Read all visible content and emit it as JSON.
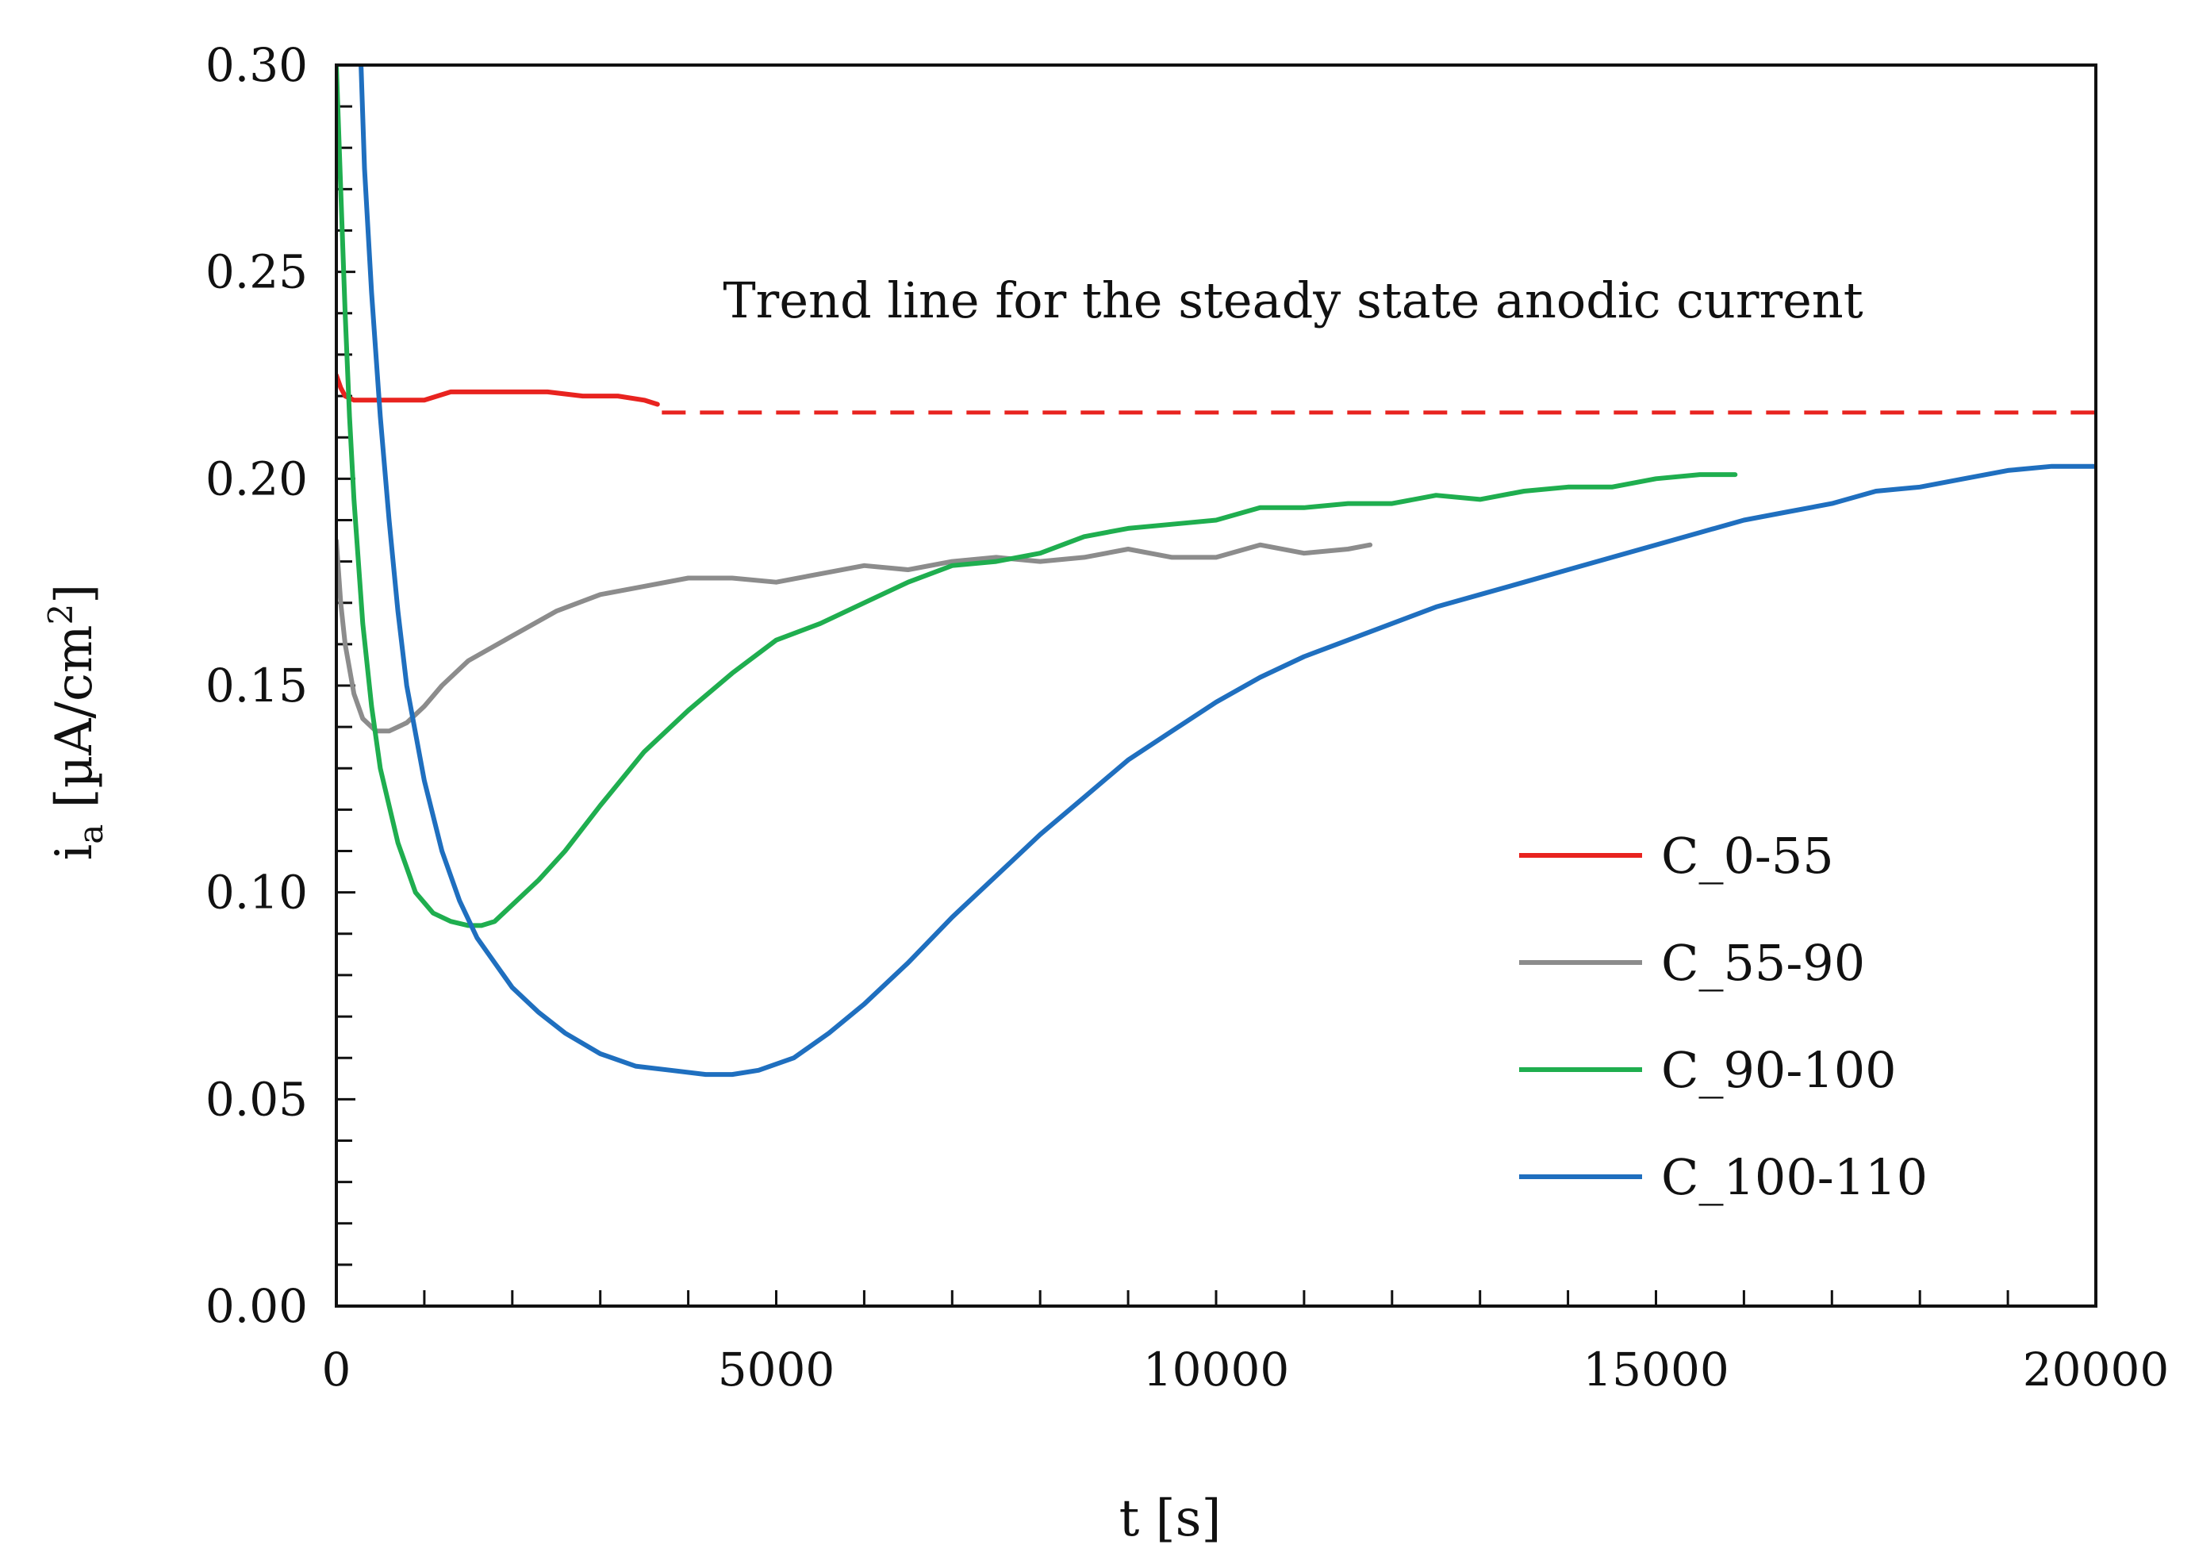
{
  "chart_data": {
    "type": "line",
    "title": "",
    "xlabel": "t [s]",
    "ylabel_main": "i",
    "ylabel_sub": "a",
    "ylabel_rest": " [µA/cm",
    "ylabel_sup": "2",
    "ylabel_close": "]",
    "xlim": [
      0,
      20000
    ],
    "ylim": [
      0,
      0.3
    ],
    "x_ticks": [
      0,
      5000,
      10000,
      15000,
      20000
    ],
    "x_tick_labels": [
      "0",
      "5000",
      "10000",
      "15000",
      "20000"
    ],
    "x_minor_step": 1000,
    "y_ticks": [
      0,
      0.05,
      0.1,
      0.15,
      0.2,
      0.25,
      0.3
    ],
    "y_tick_labels": [
      "0.00",
      "0.05",
      "0.10",
      "0.15",
      "0.20",
      "0.25",
      "0.30"
    ],
    "y_minor_step": 0.01,
    "grid": false,
    "legend_position": "lower-right",
    "annotation": "Trend line for the steady state anodic current",
    "trend_line": {
      "y": 0.216,
      "x_start": 3700,
      "x_end": 20000,
      "color": "#e8231f",
      "style": "dashed"
    },
    "series": [
      {
        "name": "C_0-55",
        "color": "#e8231f",
        "x": [
          0,
          50,
          100,
          200,
          400,
          700,
          1000,
          1300,
          1600,
          2000,
          2400,
          2800,
          3200,
          3500,
          3650
        ],
        "y": [
          0.225,
          0.222,
          0.22,
          0.219,
          0.219,
          0.219,
          0.219,
          0.221,
          0.221,
          0.221,
          0.221,
          0.22,
          0.22,
          0.219,
          0.218
        ]
      },
      {
        "name": "C_55-90",
        "color": "#8c8c8c",
        "x": [
          0,
          50,
          100,
          200,
          300,
          450,
          600,
          800,
          1000,
          1200,
          1500,
          2000,
          2500,
          3000,
          3500,
          4000,
          4500,
          5000,
          5500,
          6000,
          6500,
          7000,
          7500,
          8000,
          8500,
          9000,
          9500,
          10000,
          10500,
          11000,
          11500,
          11750
        ],
        "y": [
          0.185,
          0.17,
          0.16,
          0.148,
          0.142,
          0.139,
          0.139,
          0.141,
          0.145,
          0.15,
          0.156,
          0.162,
          0.168,
          0.172,
          0.174,
          0.176,
          0.176,
          0.175,
          0.177,
          0.179,
          0.178,
          0.18,
          0.181,
          0.18,
          0.181,
          0.183,
          0.181,
          0.181,
          0.184,
          0.182,
          0.183,
          0.184
        ]
      },
      {
        "name": "C_90-100",
        "color": "#1fae4f",
        "x": [
          0,
          50,
          100,
          150,
          200,
          300,
          400,
          500,
          700,
          900,
          1100,
          1300,
          1500,
          1650,
          1800,
          2000,
          2300,
          2600,
          3000,
          3500,
          4000,
          4500,
          5000,
          5500,
          6000,
          6500,
          7000,
          7500,
          8000,
          8500,
          9000,
          9500,
          10000,
          10500,
          11000,
          11500,
          12000,
          12500,
          13000,
          13500,
          14000,
          14500,
          15000,
          15500,
          15900
        ],
        "y": [
          0.3,
          0.27,
          0.24,
          0.215,
          0.195,
          0.165,
          0.145,
          0.13,
          0.112,
          0.1,
          0.095,
          0.093,
          0.092,
          0.092,
          0.093,
          0.097,
          0.103,
          0.11,
          0.121,
          0.134,
          0.144,
          0.153,
          0.161,
          0.165,
          0.17,
          0.175,
          0.179,
          0.18,
          0.182,
          0.186,
          0.188,
          0.189,
          0.19,
          0.193,
          0.193,
          0.194,
          0.194,
          0.196,
          0.195,
          0.197,
          0.198,
          0.198,
          0.2,
          0.201,
          0.201
        ]
      },
      {
        "name": "C_100-110",
        "color": "#1f6fbf",
        "x": [
          280,
          320,
          400,
          500,
          600,
          700,
          800,
          1000,
          1200,
          1400,
          1600,
          1800,
          2000,
          2300,
          2600,
          3000,
          3400,
          3800,
          4200,
          4500,
          4800,
          5200,
          5600,
          6000,
          6500,
          7000,
          7500,
          8000,
          8500,
          9000,
          9500,
          10000,
          10500,
          11000,
          11500,
          12000,
          12500,
          13000,
          13500,
          14000,
          14500,
          15000,
          15500,
          16000,
          16500,
          17000,
          17500,
          18000,
          18500,
          19000,
          19500,
          20000
        ],
        "y": [
          0.3,
          0.275,
          0.245,
          0.215,
          0.19,
          0.168,
          0.15,
          0.127,
          0.11,
          0.098,
          0.089,
          0.083,
          0.077,
          0.071,
          0.066,
          0.061,
          0.058,
          0.057,
          0.056,
          0.056,
          0.057,
          0.06,
          0.066,
          0.073,
          0.083,
          0.094,
          0.104,
          0.114,
          0.123,
          0.132,
          0.139,
          0.146,
          0.152,
          0.157,
          0.161,
          0.165,
          0.169,
          0.172,
          0.175,
          0.178,
          0.181,
          0.184,
          0.187,
          0.19,
          0.192,
          0.194,
          0.197,
          0.198,
          0.2,
          0.202,
          0.203,
          0.203
        ]
      }
    ]
  }
}
